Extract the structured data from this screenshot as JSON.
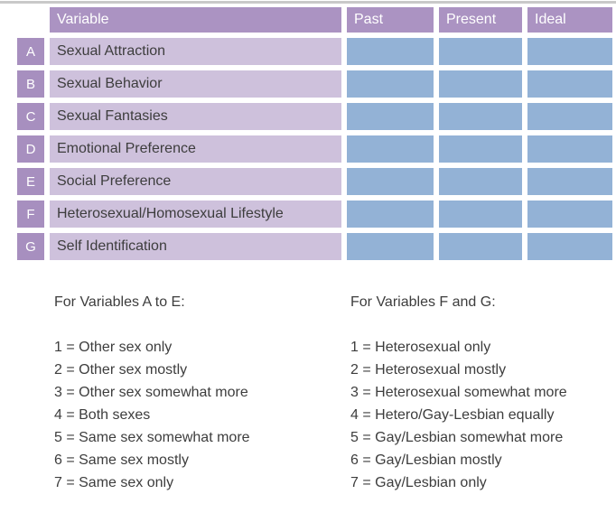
{
  "colors": {
    "page_bg": "#ffffff",
    "top_line": "#c9c9c9",
    "header_bg": "#ab93c2",
    "key_bg": "#a78fbf",
    "label_bg": "#cec1dc",
    "cell_bg": "#93b2d6",
    "body_text": "#3d3d3d",
    "header_text": "#ffffff"
  },
  "table": {
    "header": {
      "variable_label": "Variable",
      "columns": [
        "Past",
        "Present",
        "Ideal"
      ]
    },
    "rows": [
      {
        "key": "A",
        "label": "Sexual Attraction"
      },
      {
        "key": "B",
        "label": "Sexual Behavior"
      },
      {
        "key": "C",
        "label": "Sexual Fantasies"
      },
      {
        "key": "D",
        "label": "Emotional Preference"
      },
      {
        "key": "E",
        "label": "Social Preference"
      },
      {
        "key": "F",
        "label": "Heterosexual/Homosexual Lifestyle"
      },
      {
        "key": "G",
        "label": "Self Identification"
      }
    ]
  },
  "legends": [
    {
      "heading": "For Variables A to E:",
      "items": [
        "1 = Other sex only",
        "2 = Other sex mostly",
        "3 = Other sex somewhat more",
        "4 = Both sexes",
        "5 = Same sex somewhat more",
        "6 = Same sex mostly",
        "7 = Same sex only"
      ]
    },
    {
      "heading": "For Variables F and G:",
      "items": [
        "1 = Heterosexual only",
        "2 = Heterosexual mostly",
        "3 = Heterosexual somewhat more",
        "4 = Hetero/Gay-Lesbian equally",
        "5 = Gay/Lesbian somewhat more",
        "6 = Gay/Lesbian mostly",
        "7 = Gay/Lesbian only"
      ]
    }
  ]
}
